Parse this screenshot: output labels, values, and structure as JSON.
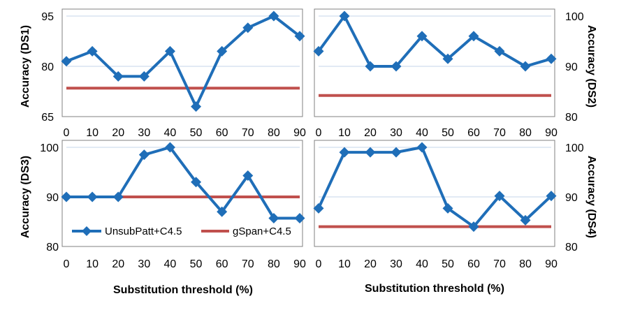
{
  "chart_data": [
    {
      "type": "line",
      "ylabel": "Accuracy (DS1)",
      "categories": [
        "0",
        "10",
        "20",
        "30",
        "40",
        "50",
        "60",
        "70",
        "80",
        "90"
      ],
      "ylim": [
        65,
        95
      ],
      "yticks": [
        "65",
        "80",
        "95"
      ],
      "series": [
        {
          "name": "UnsubPatt+C4.5",
          "values": [
            81.5,
            84.5,
            77,
            77,
            84.5,
            68,
            84.5,
            91.5,
            95,
            89
          ]
        },
        {
          "name": "gSpan+C4.5",
          "values": [
            73.5,
            73.5,
            73.5,
            73.5,
            73.5,
            73.5,
            73.5,
            73.5,
            73.5,
            73.5
          ]
        }
      ],
      "grid": "horizontal",
      "yaxis_side": "left"
    },
    {
      "type": "line",
      "ylabel": "Accuracy (DS2)",
      "categories": [
        "0",
        "10",
        "20",
        "30",
        "40",
        "50",
        "60",
        "70",
        "80",
        "90"
      ],
      "ylim": [
        80,
        100
      ],
      "yticks": [
        "80",
        "90",
        "100"
      ],
      "series": [
        {
          "name": "UnsubPatt+C4.5",
          "values": [
            93,
            100,
            90,
            90,
            96,
            91.5,
            96,
            93,
            90,
            91.5
          ]
        },
        {
          "name": "gSpan+C4.5",
          "values": [
            84.2,
            84.2,
            84.2,
            84.2,
            84.2,
            84.2,
            84.2,
            84.2,
            84.2,
            84.2
          ]
        }
      ],
      "grid": "horizontal",
      "yaxis_side": "right"
    },
    {
      "type": "line",
      "ylabel": "Accuracy (DS3)",
      "categories": [
        "0",
        "10",
        "20",
        "30",
        "40",
        "50",
        "60",
        "70",
        "80",
        "90"
      ],
      "ylim": [
        80,
        100
      ],
      "yticks": [
        "80",
        "90",
        "100"
      ],
      "series": [
        {
          "name": "UnsubPatt+C4.5",
          "values": [
            90,
            90,
            90,
            98.5,
            100,
            93,
            87,
            94.3,
            85.7,
            85.7
          ]
        },
        {
          "name": "gSpan+C4.5",
          "values": [
            90,
            90,
            90,
            90,
            90,
            90,
            90,
            90,
            90,
            90
          ]
        }
      ],
      "grid": "horizontal",
      "yaxis_side": "left",
      "legend": "bottom-inside"
    },
    {
      "type": "line",
      "ylabel": "Accuracy (DS4)",
      "categories": [
        "0",
        "10",
        "20",
        "30",
        "40",
        "50",
        "60",
        "70",
        "80",
        "90"
      ],
      "ylim": [
        80,
        100
      ],
      "yticks": [
        "80",
        "90",
        "100"
      ],
      "series": [
        {
          "name": "UnsubPatt+C4.5",
          "values": [
            87.7,
            99,
            99,
            99,
            100,
            87.7,
            84,
            90.2,
            85.3,
            90.2
          ]
        },
        {
          "name": "gSpan+C4.5",
          "values": [
            84,
            84,
            84,
            84,
            84,
            84,
            84,
            84,
            84,
            84
          ]
        }
      ],
      "grid": "horizontal",
      "yaxis_side": "right"
    }
  ],
  "xlabels": [
    "Substitution threshold (%)",
    "Substitution threshold (%)"
  ],
  "legend": {
    "items": [
      {
        "name": "UnsubPatt+C4.5",
        "color": "#1f6eb8",
        "marker": "diamond"
      },
      {
        "name": "gSpan+C4.5",
        "color": "#c0504d",
        "marker": "none"
      }
    ]
  },
  "colors": {
    "unsub": "#1f6eb8",
    "gspan": "#c0504d",
    "grid": "#c6d4e8",
    "frame": "#808080"
  }
}
